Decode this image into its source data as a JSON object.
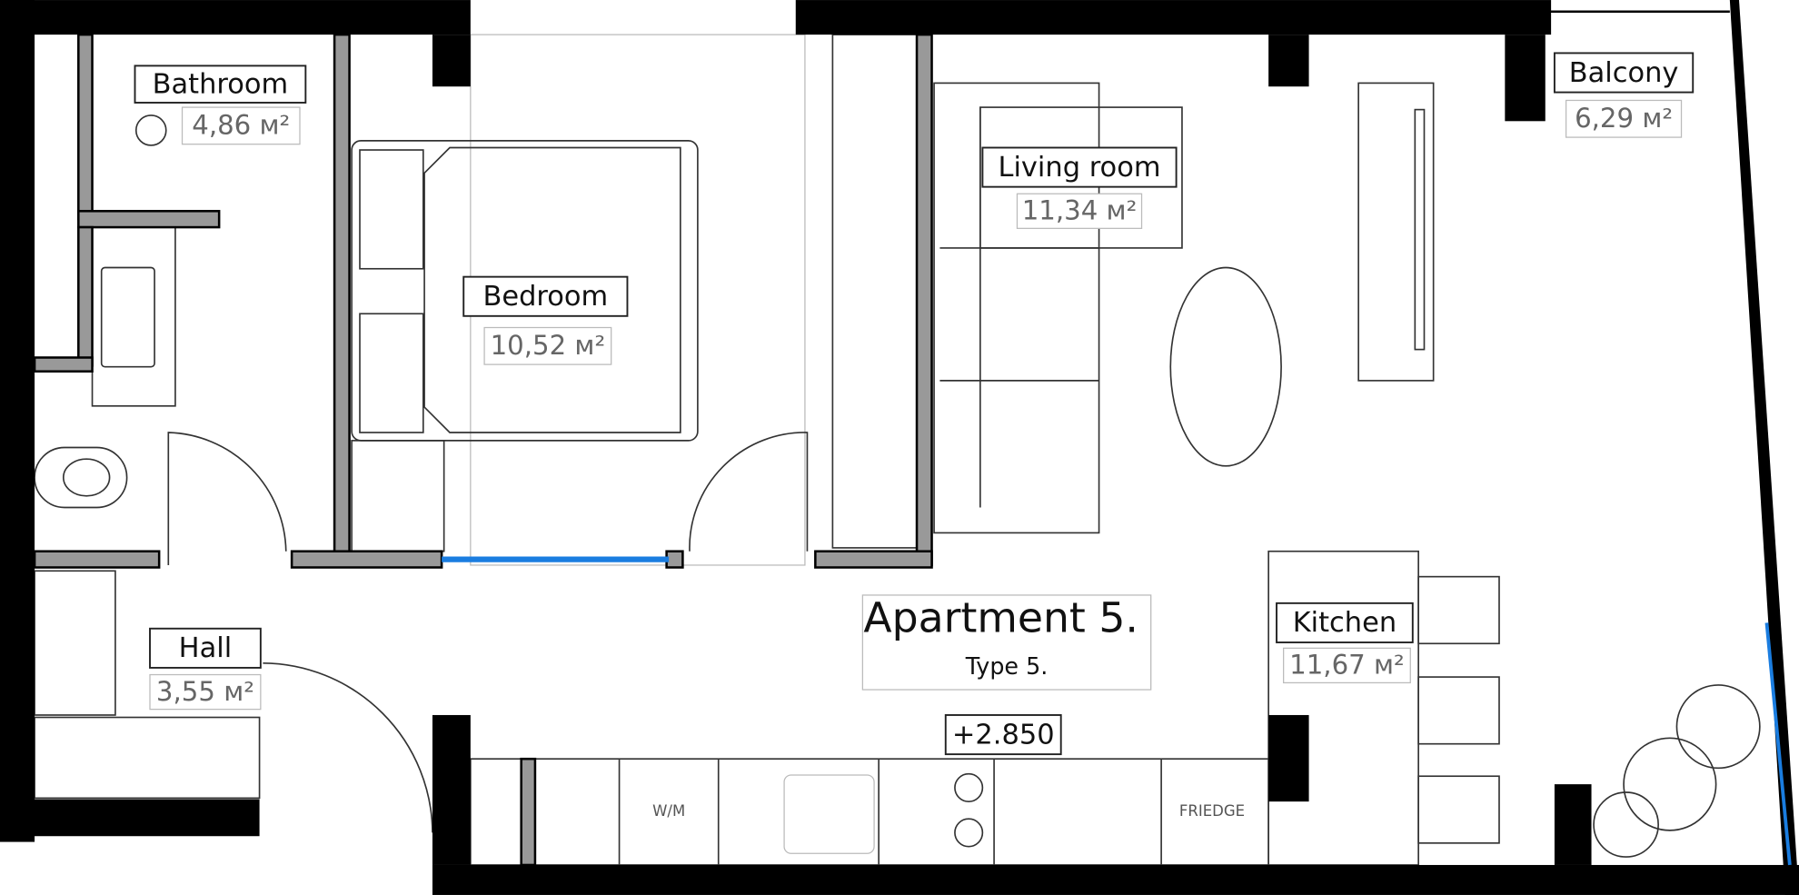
{
  "rooms": [
    {
      "name": "Bathroom",
      "area": "4,86 м²"
    },
    {
      "name": "Bedroom",
      "area": "10,52 м²"
    },
    {
      "name": "Living room",
      "area": "11,34 м²"
    },
    {
      "name": "Balcony",
      "area": "6,29 м²"
    },
    {
      "name": "Hall",
      "area": "3,55 м²"
    },
    {
      "name": "Kitchen",
      "area": "11,67 м²"
    }
  ],
  "title": "Apartment 5.",
  "subtitle": "Type 5.",
  "elevation": "+2.850",
  "appliances": [
    "W/M",
    "FRIEDGE"
  ]
}
